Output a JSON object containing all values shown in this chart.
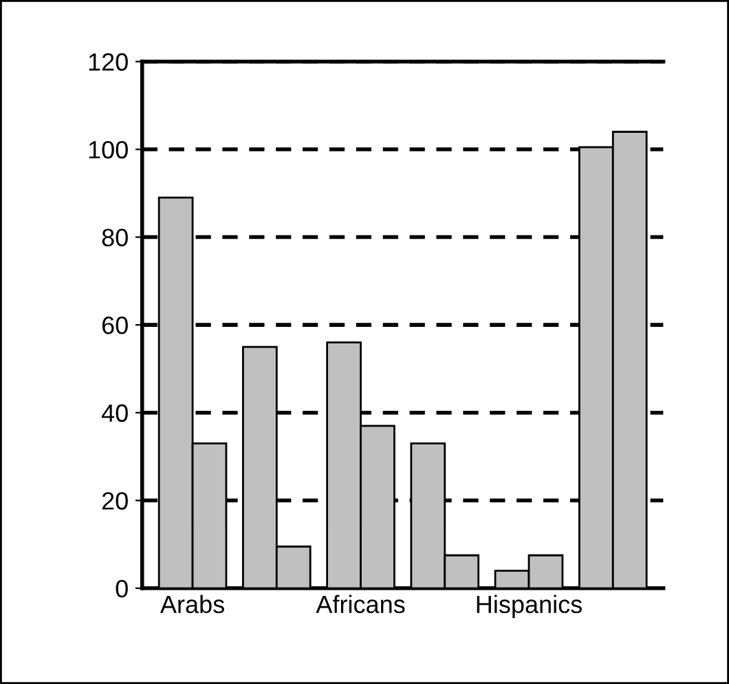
{
  "chart_data": {
    "type": "bar",
    "categories": [
      "Arabs",
      null,
      "Africans",
      null,
      "Hispanics",
      null
    ],
    "series": [
      {
        "color": "#c0c0c0",
        "values": [
          89,
          55,
          56,
          33,
          4,
          100.5
        ]
      },
      {
        "color": "#c0c0c0",
        "values": [
          33,
          9.5,
          37,
          7.5,
          7.5,
          104
        ]
      }
    ],
    "ylim": [
      0,
      120
    ],
    "yticks": [
      0,
      20,
      40,
      60,
      80,
      100,
      120
    ],
    "grid": "y",
    "line_style": "dashed"
  }
}
